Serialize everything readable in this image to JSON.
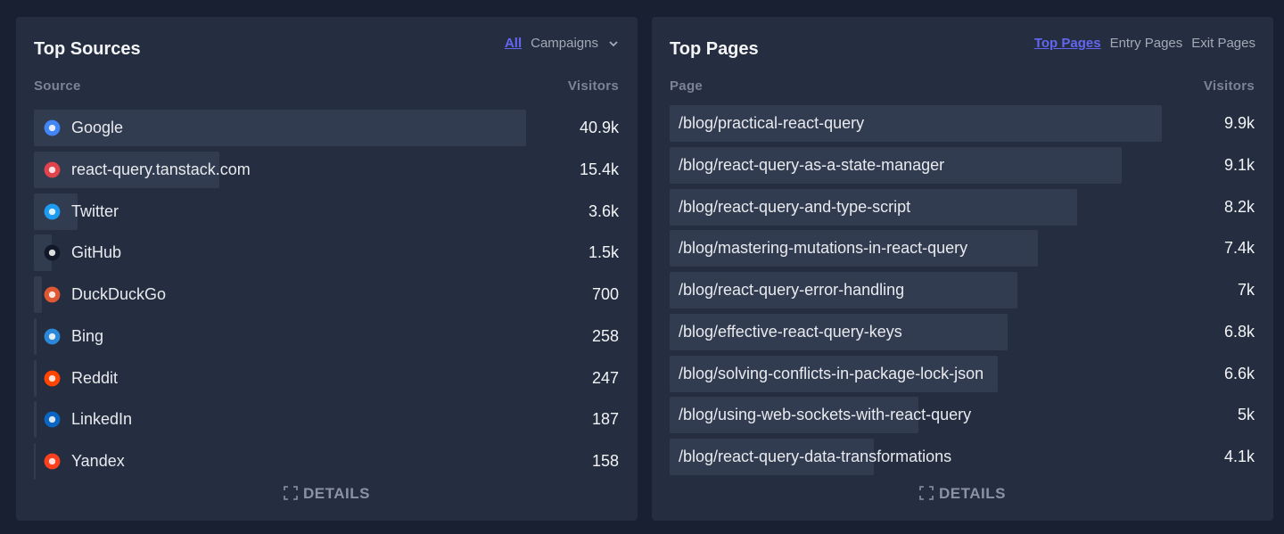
{
  "sources": {
    "title": "Top Sources",
    "tabs": [
      "All",
      "Campaigns"
    ],
    "active_tab": 0,
    "columns": [
      "Source",
      "Visitors"
    ],
    "rows": [
      {
        "label": "Google",
        "visitors": {
          "value": 40900,
          "label": "40.9k"
        }
      },
      {
        "label": "react-query.tanstack.com",
        "visitors": {
          "value": 15400,
          "label": "15.4k"
        }
      },
      {
        "label": "Twitter",
        "visitors": {
          "value": 3600,
          "label": "3.6k"
        }
      },
      {
        "label": "GitHub",
        "visitors": {
          "value": 1500,
          "label": "1.5k"
        }
      },
      {
        "label": "DuckDuckGo",
        "visitors": 700
      },
      {
        "label": "Bing",
        "visitors": 258
      },
      {
        "label": "Reddit",
        "visitors": 247
      },
      {
        "label": "LinkedIn",
        "visitors": 187
      },
      {
        "label": "Yandex",
        "visitors": 158
      }
    ],
    "details": "DETAILS"
  },
  "pages": {
    "title": "Top Pages",
    "tabs": [
      "Top Pages",
      "Entry Pages",
      "Exit Pages"
    ],
    "active_tab": 0,
    "columns": [
      "Page",
      "Visitors"
    ],
    "rows": [
      {
        "label": "/blog/practical-react-query",
        "visitors": {
          "value": 9900,
          "label": "9.9k"
        }
      },
      {
        "label": "/blog/react-query-as-a-state-manager",
        "visitors": {
          "value": 9100,
          "label": "9.1k"
        }
      },
      {
        "label": "/blog/react-query-and-type-script",
        "visitors": {
          "value": 8200,
          "label": "8.2k"
        }
      },
      {
        "label": "/blog/mastering-mutations-in-react-query",
        "visitors": {
          "value": 7400,
          "label": "7.4k"
        }
      },
      {
        "label": "/blog/react-query-error-handling",
        "visitors": {
          "value": 7000,
          "label": "7k"
        }
      },
      {
        "label": "/blog/effective-react-query-keys",
        "visitors": {
          "value": 6800,
          "label": "6.8k"
        }
      },
      {
        "label": "/blog/solving-conflicts-in-package-lock-json",
        "visitors": {
          "value": 6600,
          "label": "6.6k"
        }
      },
      {
        "label": "/blog/using-web-sockets-with-react-query",
        "visitors": {
          "value": 5000,
          "label": "5k"
        }
      },
      {
        "label": "/blog/react-query-data-transformations",
        "visitors": {
          "value": 4100,
          "label": "4.1k"
        }
      }
    ],
    "details": "DETAILS"
  }
}
